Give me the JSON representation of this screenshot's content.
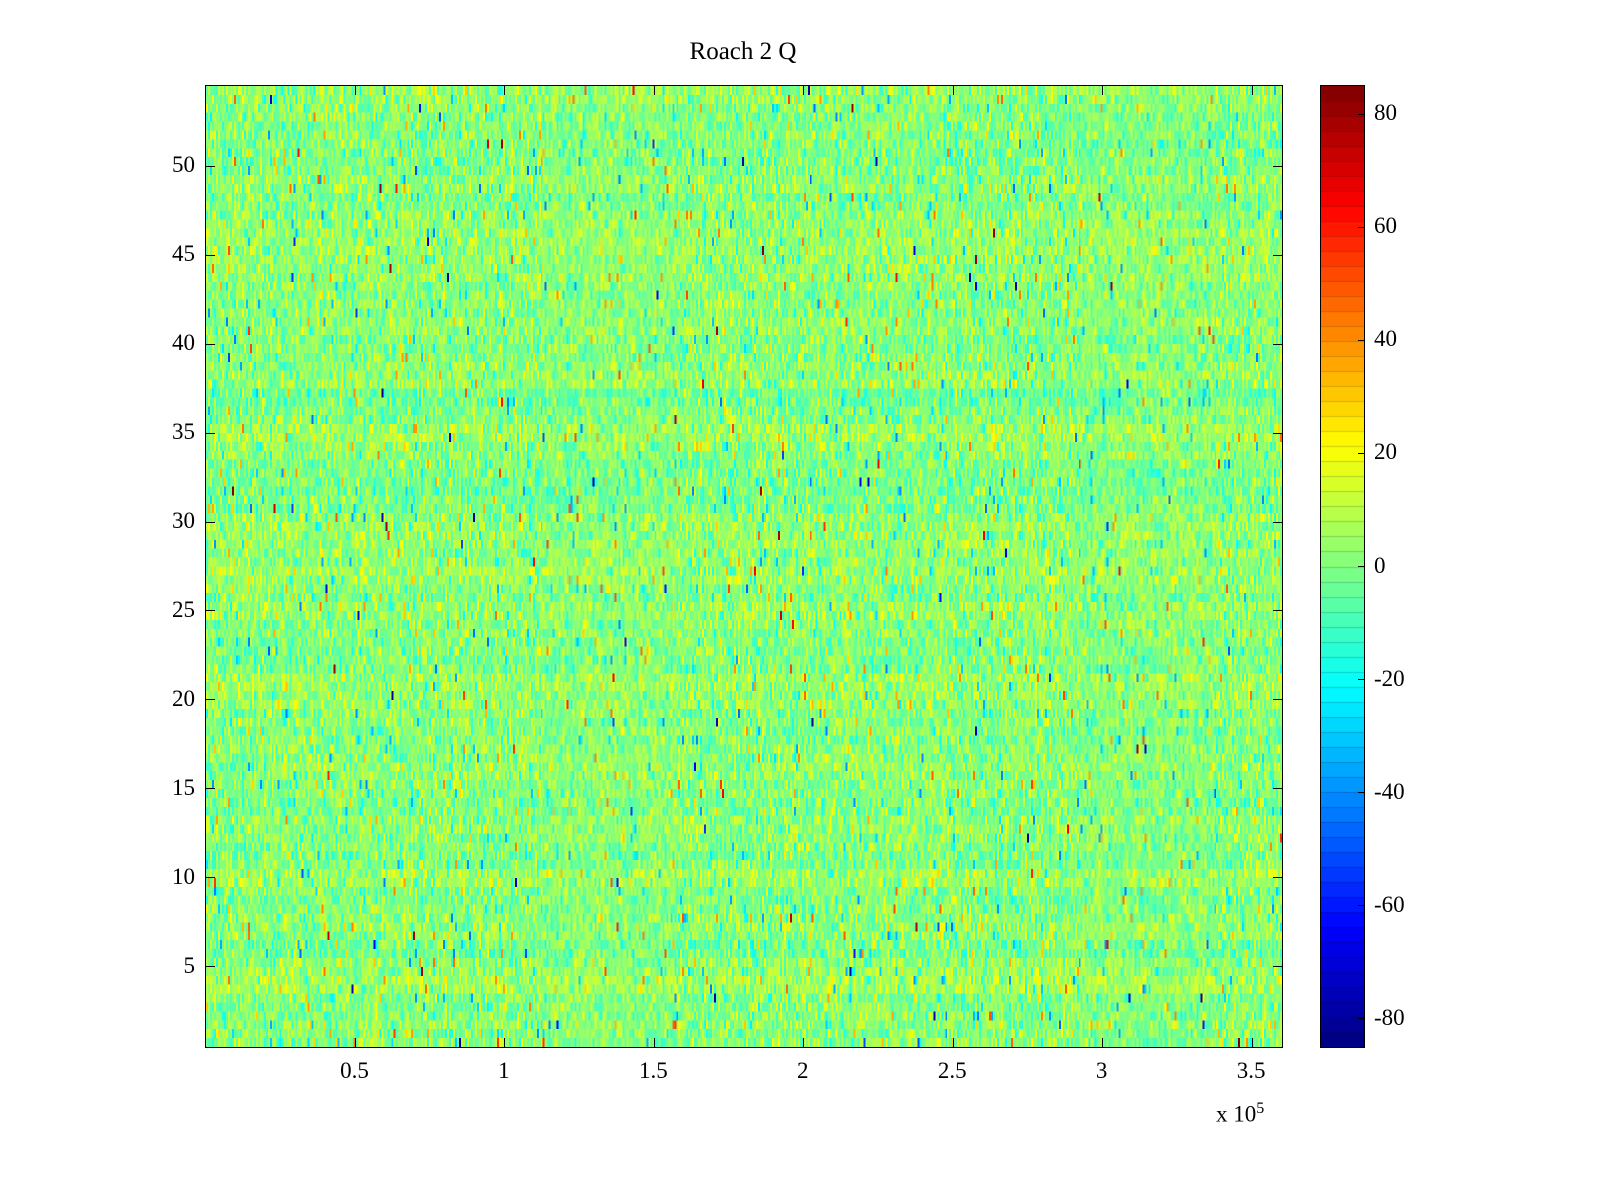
{
  "chart_data": {
    "type": "heatmap",
    "title": "Roach 2 Q",
    "x_axis": {
      "min": 0,
      "max": 360000,
      "scale": 100000,
      "tick_values": [
        0.5,
        1,
        1.5,
        2,
        2.5,
        3,
        3.5
      ],
      "tick_labels": [
        "0.5",
        "1",
        "1.5",
        "2",
        "2.5",
        "3",
        "3.5"
      ],
      "multiplier_label": "x 10",
      "multiplier_exp": "5"
    },
    "y_axis": {
      "min": 0.5,
      "max": 54.5,
      "tick_values": [
        5,
        10,
        15,
        20,
        25,
        30,
        35,
        40,
        45,
        50
      ],
      "tick_labels": [
        "5",
        "10",
        "15",
        "20",
        "25",
        "30",
        "35",
        "40",
        "45",
        "50"
      ]
    },
    "colorbar": {
      "min": -85,
      "max": 85,
      "tick_values": [
        80,
        60,
        40,
        20,
        0,
        -20,
        -40,
        -60,
        -80
      ],
      "tick_labels": [
        "80",
        "60",
        "40",
        "20",
        "0",
        "-20",
        "-40",
        "-60",
        "-80"
      ],
      "segments": 64,
      "colormap": "jet"
    },
    "colormap_stops": [
      [
        0.0,
        0.0,
        0.0,
        0.5
      ],
      [
        0.125,
        0.0,
        0.0,
        1.0
      ],
      [
        0.375,
        0.0,
        1.0,
        1.0
      ],
      [
        0.625,
        1.0,
        1.0,
        0.0
      ],
      [
        0.875,
        1.0,
        0.0,
        0.0
      ],
      [
        1.0,
        0.5,
        0.0,
        0.0
      ]
    ],
    "grid": {
      "rows": 54,
      "display_subrows_per_row": 2,
      "display_cols": 540
    },
    "noise": {
      "description": "Random noise field centered near zero; mostly |v|<15 (greens) with sparse cyan/blue and orange/red outliers",
      "mean": 2,
      "std": 8.5,
      "row_offset_std": 2,
      "outlier_prob": 0.05,
      "outlier_spread": 40,
      "extreme_prob": 0.004,
      "extreme_range": 85,
      "seed": 1337
    },
    "colors": {
      "background": "#ffffff",
      "axis": "#000000",
      "text": "#000000"
    }
  }
}
